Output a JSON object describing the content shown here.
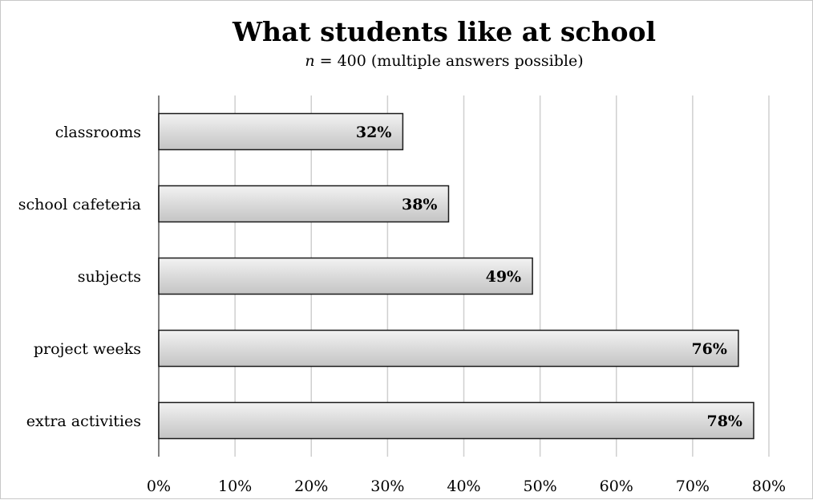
{
  "chart_data": {
    "type": "bar",
    "orientation": "horizontal",
    "title": "What students like at school",
    "subtitle_var": "n",
    "subtitle_rest": " = 400 (multiple answers possible)",
    "categories": [
      "classrooms",
      "school cafeteria",
      "subjects",
      "project weeks",
      "extra activities"
    ],
    "values": [
      32,
      38,
      49,
      76,
      78
    ],
    "value_labels": [
      "32%",
      "38%",
      "49%",
      "76%",
      "78%"
    ],
    "xlim": [
      0,
      80
    ],
    "ticks": [
      0,
      10,
      20,
      30,
      40,
      50,
      60,
      70,
      80
    ],
    "tick_labels": [
      "0%",
      "10%",
      "20%",
      "30%",
      "40%",
      "50%",
      "60%",
      "70%",
      "80%"
    ],
    "grid": "vertical",
    "legend": "none",
    "colors": {
      "bar_fill_light": "#f2f2f2",
      "bar_fill_dark": "#c4c4c4",
      "bar_stroke": "#1a1a1a",
      "grid": "#cfcfcf",
      "axis": "#555555"
    }
  }
}
